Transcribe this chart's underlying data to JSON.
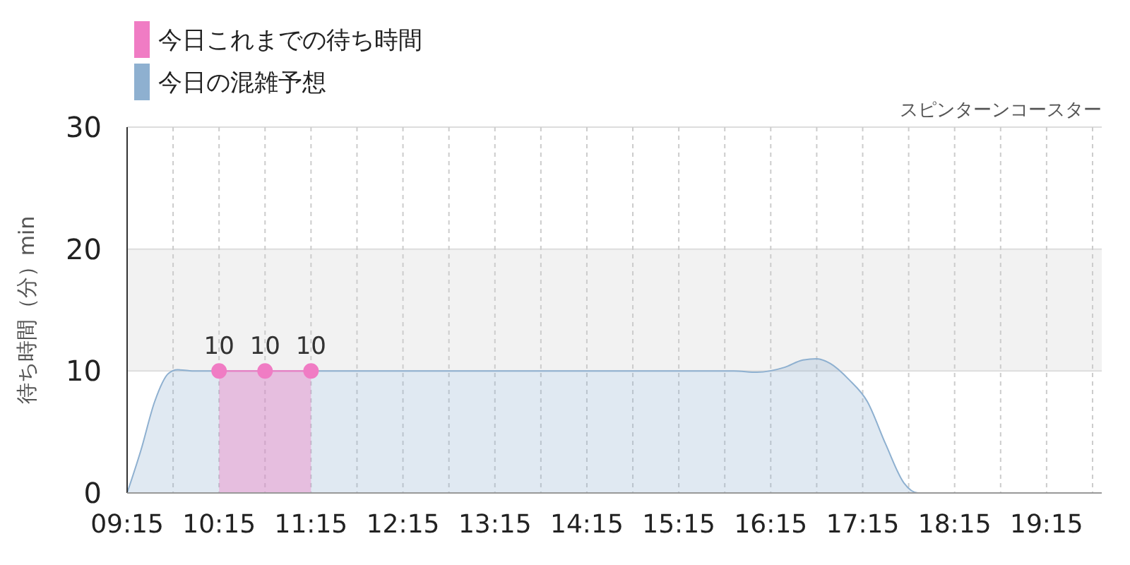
{
  "chart_data": {
    "type": "area",
    "subtitle": "スピンターンコースター",
    "ylabel": "待ち時間（分）min",
    "xlim": [
      9.25,
      19.85
    ],
    "ylim": [
      0,
      30
    ],
    "xticks": [
      {
        "value": 9.25,
        "label": "09:15"
      },
      {
        "value": 9.75,
        "label": null
      },
      {
        "value": 10.25,
        "label": "10:15"
      },
      {
        "value": 10.75,
        "label": null
      },
      {
        "value": 11.25,
        "label": "11:15"
      },
      {
        "value": 11.75,
        "label": null
      },
      {
        "value": 12.25,
        "label": "12:15"
      },
      {
        "value": 12.75,
        "label": null
      },
      {
        "value": 13.25,
        "label": "13:15"
      },
      {
        "value": 13.75,
        "label": null
      },
      {
        "value": 14.25,
        "label": "14:15"
      },
      {
        "value": 14.75,
        "label": null
      },
      {
        "value": 15.25,
        "label": "15:15"
      },
      {
        "value": 15.75,
        "label": null
      },
      {
        "value": 16.25,
        "label": "16:15"
      },
      {
        "value": 16.75,
        "label": null
      },
      {
        "value": 17.25,
        "label": "17:15"
      },
      {
        "value": 17.75,
        "label": null
      },
      {
        "value": 18.25,
        "label": "18:15"
      },
      {
        "value": 18.75,
        "label": null
      },
      {
        "value": 19.25,
        "label": "19:15"
      },
      {
        "value": 19.75,
        "label": null
      }
    ],
    "yticks": [
      0,
      10,
      20,
      30
    ],
    "grid": true,
    "legend": "top left",
    "bands": [
      {
        "axis": "y",
        "from": 10,
        "to": 20,
        "color": "#f2f2f2"
      }
    ],
    "series": [
      {
        "name": "今日の混雑予想",
        "color": "#8eb0d0",
        "x": [
          9.25,
          9.4,
          9.55,
          9.7,
          9.8,
          10,
          11,
          12,
          13,
          14,
          15,
          15.85,
          16.1,
          16.4,
          16.6,
          16.75,
          16.9,
          17.1,
          17.3,
          17.5,
          17.7,
          17.85,
          18,
          18.3,
          19,
          19.85
        ],
        "values": [
          0,
          3.5,
          7.5,
          9.8,
          10.1,
          10,
          10,
          10,
          10,
          10,
          10,
          10,
          9.9,
          10.3,
          10.9,
          11,
          10.6,
          9.3,
          7.5,
          4,
          0.8,
          0,
          0,
          0,
          0,
          0
        ],
        "marker": "none"
      },
      {
        "name": "今日これまでの待ち時間",
        "color": "#f07cc4",
        "x": [
          10.25,
          10.75,
          11.25
        ],
        "values": [
          10,
          10,
          10
        ],
        "marker": "circle",
        "value_labels": [
          "10",
          "10",
          "10"
        ]
      }
    ]
  }
}
